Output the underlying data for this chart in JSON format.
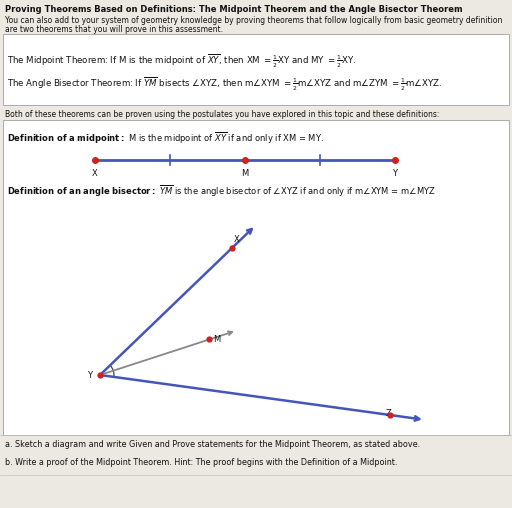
{
  "title": "Proving Theorems Based on Definitions: The Midpoint Theorem and the Angle Bisector Theorem",
  "intro_text1": "You can also add to your system of geometry knowledge by proving theorems that follow logically from basic geometry definition",
  "intro_text2": "are two theorems that you will prove in this assessment.",
  "both_text": "Both of these theorems can be proven using the postulates you have explored in this topic and these definitions:",
  "part_a": "a. Sketch a diagram and write Given and Prove statements for the Midpoint Theorem, as stated above.",
  "part_b": "b. Write a proof of the Midpoint Theorem. Hint: The proof begins with the Definition of a Midpoint.",
  "bg_color": "#ece8e2",
  "box_color": "#ffffff",
  "text_color": "#111111",
  "line_blue": "#4455bb",
  "line_gray": "#888888",
  "dot_red": "#cc2222",
  "tick_blue": "#4455bb",
  "figw": 5.12,
  "figh": 5.08,
  "dpi": 100
}
